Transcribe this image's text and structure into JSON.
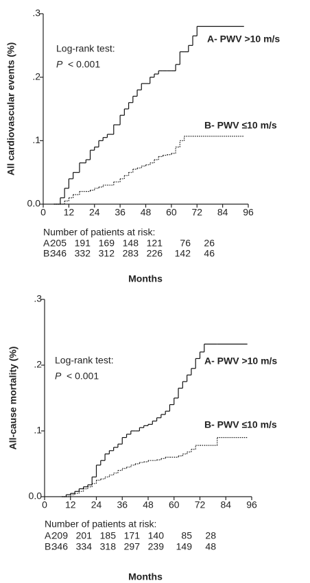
{
  "chart_data": [
    {
      "type": "line",
      "step": true,
      "y_label": "All cardiovascular events (%)",
      "x_label": "Months",
      "annotation": [
        "Log-rank test:",
        "P",
        "< 0.001"
      ],
      "xlim": [
        0,
        96
      ],
      "xticks": [
        0,
        12,
        24,
        36,
        48,
        60,
        72,
        84,
        96
      ],
      "ylim": [
        0,
        0.3
      ],
      "yticks": [
        {
          "value": 0,
          "label": "0.0"
        },
        {
          "value": 0.1,
          "label": ".1"
        },
        {
          "value": 0.2,
          "label": ".2"
        },
        {
          "value": 0.3,
          "label": ".3"
        }
      ],
      "x": [
        5,
        8,
        10,
        12,
        14,
        17,
        20,
        22,
        24,
        26,
        28,
        30,
        33,
        36,
        38,
        40,
        42,
        44,
        46,
        48,
        50,
        52,
        54,
        56,
        58,
        60,
        62,
        64,
        66,
        68,
        70,
        72,
        94
      ],
      "series": [
        {
          "name": "A- PWV >10 m/s",
          "color": "#111111",
          "line_style": "solid",
          "values": [
            0,
            0.01,
            0.025,
            0.04,
            0.05,
            0.065,
            0.07,
            0.085,
            0.09,
            0.1,
            0.105,
            0.11,
            0.125,
            0.14,
            0.15,
            0.16,
            0.17,
            0.18,
            0.19,
            0.19,
            0.2,
            0.205,
            0.21,
            0.21,
            0.21,
            0.21,
            0.22,
            0.24,
            0.24,
            0.25,
            0.265,
            0.28,
            0.28
          ]
        },
        {
          "name": "B- PWV ≤10 m/s",
          "color": "#111111",
          "line_style": "dotted",
          "values": [
            0,
            0,
            0.005,
            0.01,
            0.015,
            0.02,
            0.02,
            0.022,
            0.025,
            0.027,
            0.03,
            0.03,
            0.035,
            0.04,
            0.045,
            0.05,
            0.055,
            0.057,
            0.06,
            0.062,
            0.065,
            0.07,
            0.075,
            0.077,
            0.078,
            0.08,
            0.09,
            0.1,
            0.107,
            0.107,
            0.107,
            0.107,
            0.107
          ]
        }
      ],
      "risk_table": {
        "title": "Number of patients at risk:",
        "rows": [
          {
            "label": "A:",
            "values": [
              205,
              191,
              169,
              148,
              121,
              76,
              26
            ]
          },
          {
            "label": "B:",
            "values": [
              346,
              332,
              312,
              283,
              226,
              142,
              46
            ]
          }
        ]
      }
    },
    {
      "type": "line",
      "step": true,
      "y_label": "All-cause mortality (%)",
      "x_label": "Months",
      "annotation": [
        "Log-rank test:",
        "P",
        "< 0.001"
      ],
      "xlim": [
        0,
        96
      ],
      "xticks": [
        0,
        12,
        24,
        36,
        48,
        60,
        72,
        84,
        96
      ],
      "ylim": [
        0,
        0.3
      ],
      "yticks": [
        {
          "value": 0,
          "label": "0.0"
        },
        {
          "value": 0.1,
          "label": ".1"
        },
        {
          "value": 0.2,
          "label": ".2"
        },
        {
          "value": 0.3,
          "label": ".3"
        }
      ],
      "x": [
        8,
        10,
        12,
        14,
        16,
        18,
        20,
        22,
        24,
        26,
        28,
        30,
        32,
        34,
        36,
        38,
        40,
        42,
        44,
        46,
        48,
        50,
        52,
        54,
        56,
        58,
        60,
        62,
        64,
        66,
        68,
        70,
        72,
        74,
        80,
        94
      ],
      "series": [
        {
          "name": "A- PWV >10 m/s",
          "color": "#111111",
          "line_style": "solid",
          "values": [
            0,
            0.003,
            0.005,
            0.008,
            0.012,
            0.015,
            0.018,
            0.03,
            0.048,
            0.055,
            0.065,
            0.07,
            0.075,
            0.08,
            0.09,
            0.095,
            0.1,
            0.1,
            0.105,
            0.108,
            0.11,
            0.115,
            0.12,
            0.125,
            0.13,
            0.14,
            0.15,
            0.165,
            0.175,
            0.185,
            0.195,
            0.21,
            0.22,
            0.232,
            0.232,
            0.232
          ]
        },
        {
          "name": "B- PWV ≤10 m/s",
          "color": "#111111",
          "line_style": "dotted",
          "values": [
            0,
            0,
            0.003,
            0.005,
            0.008,
            0.012,
            0.015,
            0.02,
            0.025,
            0.027,
            0.03,
            0.033,
            0.036,
            0.04,
            0.043,
            0.045,
            0.048,
            0.05,
            0.052,
            0.053,
            0.055,
            0.055,
            0.056,
            0.058,
            0.06,
            0.06,
            0.06,
            0.062,
            0.065,
            0.068,
            0.072,
            0.078,
            0.078,
            0.078,
            0.09,
            0.09
          ]
        }
      ],
      "risk_table": {
        "title": "Number of patients at risk:",
        "rows": [
          {
            "label": "A:",
            "values": [
              209,
              201,
              185,
              171,
              140,
              85,
              28
            ]
          },
          {
            "label": "B:",
            "values": [
              346,
              334,
              318,
              297,
              239,
              149,
              48
            ]
          }
        ]
      }
    }
  ]
}
